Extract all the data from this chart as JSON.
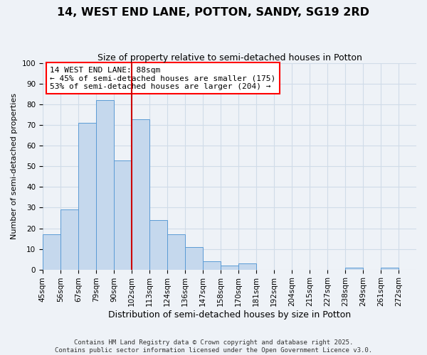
{
  "title": "14, WEST END LANE, POTTON, SANDY, SG19 2RD",
  "subtitle": "Size of property relative to semi-detached houses in Potton",
  "xlabel": "Distribution of semi-detached houses by size in Potton",
  "ylabel": "Number of semi-detached properties",
  "bin_labels": [
    "45sqm",
    "56sqm",
    "67sqm",
    "79sqm",
    "90sqm",
    "102sqm",
    "113sqm",
    "124sqm",
    "136sqm",
    "147sqm",
    "158sqm",
    "170sqm",
    "181sqm",
    "192sqm",
    "204sqm",
    "215sqm",
    "227sqm",
    "238sqm",
    "249sqm",
    "261sqm",
    "272sqm"
  ],
  "bar_heights": [
    17,
    29,
    71,
    82,
    53,
    73,
    24,
    17,
    11,
    4,
    2,
    3,
    0,
    0,
    0,
    0,
    0,
    1,
    0,
    1,
    0
  ],
  "bar_color": "#c5d8ed",
  "bar_edge_color": "#5b9bd5",
  "grid_color": "#d0dce8",
  "bg_color": "#eef2f7",
  "vline_bar_index": 4,
  "vline_color": "#cc0000",
  "annotation_line1": "14 WEST END LANE: 88sqm",
  "annotation_line2": "← 45% of semi-detached houses are smaller (175)",
  "annotation_line3": "53% of semi-detached houses are larger (204) →",
  "footer_line1": "Contains HM Land Registry data © Crown copyright and database right 2025.",
  "footer_line2": "Contains public sector information licensed under the Open Government Licence v3.0.",
  "ylim": [
    0,
    100
  ],
  "title_fontsize": 11.5,
  "subtitle_fontsize": 9,
  "xlabel_fontsize": 9,
  "ylabel_fontsize": 8,
  "tick_fontsize": 7.5,
  "annotation_fontsize": 8,
  "footer_fontsize": 6.5
}
